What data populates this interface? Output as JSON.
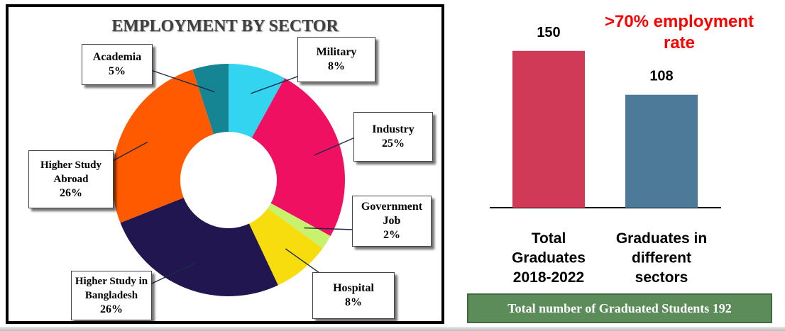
{
  "chart_data": [
    {
      "type": "pie",
      "title": "EMPLOYMENT BY SECTOR",
      "donut": true,
      "slices": [
        {
          "label": "Military",
          "value_label": "8%",
          "value": 8,
          "color": "#33d4f0"
        },
        {
          "label": "Industry",
          "value_label": "25%",
          "value": 25,
          "color": "#f01062"
        },
        {
          "label": "Government Job",
          "value_label": "2%",
          "value": 2,
          "color": "#c6f26e"
        },
        {
          "label": "Hospital",
          "value_label": "8%",
          "value": 8,
          "color": "#f7dc0e"
        },
        {
          "label": "Higher Study in Bangladesh",
          "value_label": "26%",
          "value": 26,
          "color": "#221650"
        },
        {
          "label": "Higher Study Abroad",
          "value_label": "26%",
          "value": 26,
          "color": "#ff5a00"
        },
        {
          "label": "Academia",
          "value_label": "5%",
          "value": 5,
          "color": "#158594"
        }
      ]
    },
    {
      "type": "bar",
      "categories": [
        "Total Graduates 2018-2022",
        "Graduates in different sectors"
      ],
      "category_lines": [
        [
          "Total",
          "Graduates",
          "2018-2022"
        ],
        [
          "Graduates in",
          "different",
          "sectors"
        ]
      ],
      "values": [
        150,
        108
      ],
      "value_labels": [
        "150",
        "108"
      ],
      "colors": [
        "#d03a56",
        "#4d7a99"
      ],
      "annotation_lines": [
        ">70% employment",
        "rate"
      ],
      "footer": "Total number of Graduated Students 192"
    }
  ]
}
